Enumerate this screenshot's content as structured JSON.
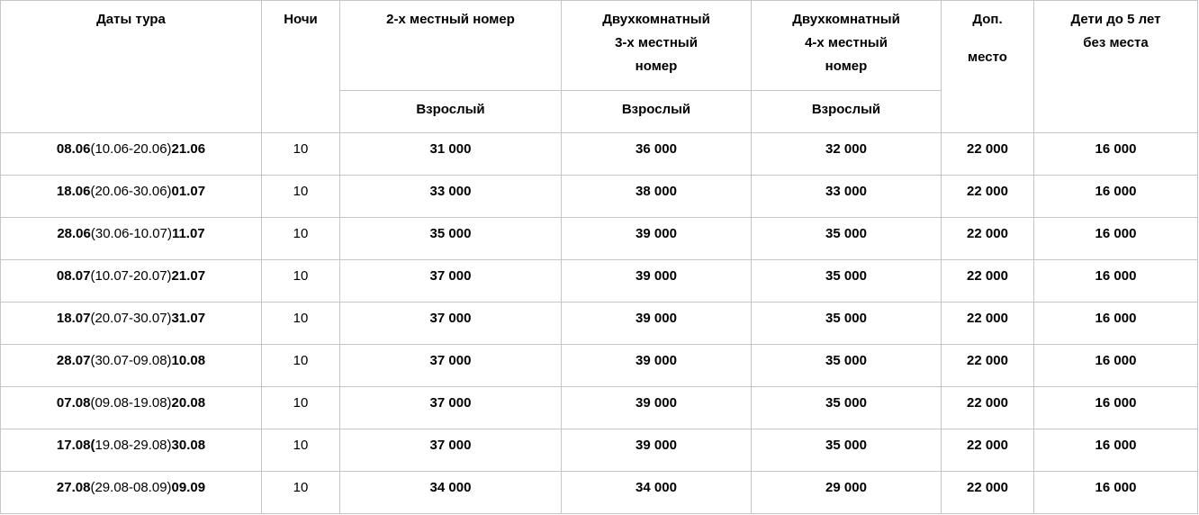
{
  "headers": {
    "dates": "Даты тура",
    "nights": "Ночи",
    "double": "2-х местный номер",
    "triple": [
      "Двухкомнатный",
      "3-х местный",
      "номер"
    ],
    "quad": [
      "Двухкомнатный",
      "4-х местный",
      "номер"
    ],
    "extra": [
      "Доп.",
      "место"
    ],
    "kids": [
      "Дети до 5 лет",
      "без места"
    ],
    "adult": "Взрослый"
  },
  "rows": [
    {
      "start": "08.06",
      "mid": "(10.06-20.06)",
      "end": "21.06",
      "nights": "10",
      "double": "31 000",
      "triple": "36 000",
      "quad": "32 000",
      "extra": "22 000",
      "kids": "16 000"
    },
    {
      "start": "18.06",
      "mid": "(20.06-30.06)",
      "end": "01.07",
      "nights": "10",
      "double": "33 000",
      "triple": "38 000",
      "quad": "33 000",
      "extra": "22 000",
      "kids": "16 000"
    },
    {
      "start": "28.06",
      "mid": "(30.06-10.07)",
      "end": "11.07",
      "nights": "10",
      "double": "35 000",
      "triple": "39 000",
      "quad": "35 000",
      "extra": "22 000",
      "kids": "16 000"
    },
    {
      "start": "08.07",
      "mid": "(10.07-20.07)",
      "end": "21.07",
      "nights": "10",
      "double": "37 000",
      "triple": "39 000",
      "quad": "35 000",
      "extra": "22 000",
      "kids": "16 000"
    },
    {
      "start": "18.07",
      "mid": "(20.07-30.07)",
      "end": "31.07",
      "nights": "10",
      "double": "37 000",
      "triple": "39 000",
      "quad": "35 000",
      "extra": "22 000",
      "kids": "16 000"
    },
    {
      "start": "28.07",
      "mid": "(30.07-09.08)",
      "end": "10.08",
      "nights": "10",
      "double": "37 000",
      "triple": "39 000",
      "quad": "35 000",
      "extra": "22 000",
      "kids": "16 000"
    },
    {
      "start": "07.08",
      "mid": "(09.08-19.08)",
      "end": "20.08",
      "nights": "10",
      "double": "37 000",
      "triple": "39 000",
      "quad": "35 000",
      "extra": "22 000",
      "kids": "16 000"
    },
    {
      "start": "17.08(",
      "mid": "19.08-29.08)",
      "end": "30.08",
      "nights": "10",
      "double": "37 000",
      "triple": "39 000",
      "quad": "35 000",
      "extra": "22 000",
      "kids": "16 000"
    },
    {
      "start": "27.08",
      "mid": "(29.08-08.09)",
      "end": "09.09",
      "nights": "10",
      "double": "34 000",
      "triple": "34 000",
      "quad": "29 000",
      "extra": "22 000",
      "kids": "16 000"
    }
  ]
}
